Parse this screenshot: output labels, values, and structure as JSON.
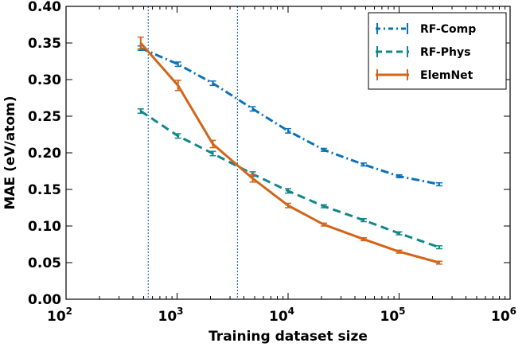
{
  "chart_data": {
    "type": "line",
    "xlabel": "Training dataset size",
    "ylabel": "MAE (eV/atom)",
    "xscale": "log",
    "xlim": [
      100,
      1000000
    ],
    "ylim": [
      0,
      0.4
    ],
    "x_ticks": [
      {
        "value": 100,
        "base": "10",
        "exp": "2"
      },
      {
        "value": 1000,
        "base": "10",
        "exp": "3"
      },
      {
        "value": 10000,
        "base": "10",
        "exp": "4"
      },
      {
        "value": 100000,
        "base": "10",
        "exp": "5"
      },
      {
        "value": 1000000,
        "base": "10",
        "exp": "6"
      }
    ],
    "y_ticks": [
      {
        "value": 0.0,
        "label": "0.00"
      },
      {
        "value": 0.05,
        "label": "0.05"
      },
      {
        "value": 0.1,
        "label": "0.10"
      },
      {
        "value": 0.15,
        "label": "0.15"
      },
      {
        "value": 0.2,
        "label": "0.20"
      },
      {
        "value": 0.25,
        "label": "0.25"
      },
      {
        "value": 0.3,
        "label": "0.30"
      },
      {
        "value": 0.35,
        "label": "0.35"
      },
      {
        "value": 0.4,
        "label": "0.40"
      }
    ],
    "vertical_lines": [
      550,
      3500
    ],
    "vertical_line_color": "#1f77b4",
    "legend_position": "top-right",
    "series": [
      {
        "name": "RF-Comp",
        "color": "#0a72b8",
        "style": "dashdot",
        "x": [
          470,
          1020,
          2100,
          4800,
          10000,
          21000,
          48000,
          100000,
          230000
        ],
        "y": [
          0.343,
          0.321,
          0.295,
          0.26,
          0.23,
          0.204,
          0.184,
          0.168,
          0.157
        ],
        "err": [
          0.003,
          0.003,
          0.003,
          0.003,
          0.003,
          0.002,
          0.002,
          0.002,
          0.002
        ]
      },
      {
        "name": "RF-Phys",
        "color": "#12878a",
        "style": "dashed",
        "x": [
          470,
          1020,
          2100,
          4800,
          10000,
          21000,
          48000,
          100000,
          230000
        ],
        "y": [
          0.257,
          0.223,
          0.199,
          0.171,
          0.148,
          0.127,
          0.108,
          0.09,
          0.071
        ],
        "err": [
          0.003,
          0.003,
          0.003,
          0.003,
          0.003,
          0.002,
          0.002,
          0.002,
          0.002
        ]
      },
      {
        "name": "ElemNet",
        "color": "#d26519",
        "style": "solid",
        "x": [
          470,
          1020,
          2100,
          4800,
          10000,
          21000,
          48000,
          100000,
          230000
        ],
        "y": [
          0.35,
          0.292,
          0.212,
          0.165,
          0.128,
          0.102,
          0.082,
          0.065,
          0.05
        ],
        "err": [
          0.008,
          0.007,
          0.005,
          0.005,
          0.003,
          0.002,
          0.002,
          0.002,
          0.002
        ]
      }
    ]
  }
}
